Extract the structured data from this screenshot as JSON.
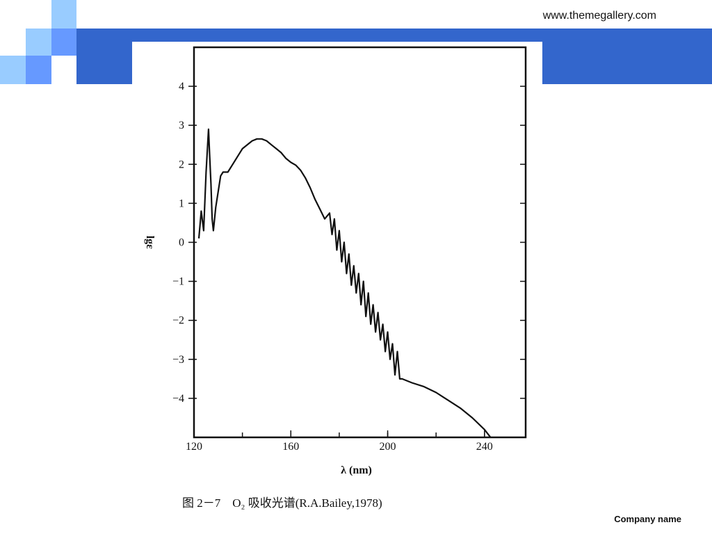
{
  "slide": {
    "website": "www.themegallery.com",
    "company": "Company name",
    "colors": {
      "band": "#3366cc",
      "light_square": "#99ccff",
      "mid_square": "#6699ff"
    }
  },
  "chart_data": {
    "type": "line",
    "xlabel": "λ (nm)",
    "ylabel": "lgε",
    "caption": "图 2－7　O₂ 吸收光谱(R.A.Bailey,1978)",
    "xlim": [
      120,
      257
    ],
    "ylim": [
      -5,
      5
    ],
    "x_ticks": [
      120,
      160,
      200,
      240
    ],
    "y_ticks": [
      4,
      3,
      2,
      1,
      0,
      -1,
      -2,
      -3,
      -4
    ],
    "y_tick_labels": [
      "4",
      "3",
      "2",
      "1",
      "0",
      "−1",
      "−2",
      "−3",
      "−4"
    ],
    "grid": false,
    "series": [
      {
        "color": "#111111",
        "x": [
          122,
          123,
          124,
          125,
          126,
          126.5,
          127,
          127.5,
          128,
          129,
          130,
          131,
          132,
          134,
          136,
          140,
          144,
          146,
          148,
          150,
          152,
          154,
          156,
          158,
          160,
          162,
          164,
          166,
          168,
          170,
          172,
          174,
          176,
          177,
          178,
          179,
          180,
          181,
          182,
          183,
          184,
          185,
          186,
          187,
          188,
          189,
          190,
          191,
          192,
          193,
          194,
          195,
          196,
          197,
          198,
          199,
          200,
          201,
          202,
          203,
          204,
          205,
          206,
          210,
          215,
          220,
          225,
          230,
          235,
          240,
          245,
          248
        ],
        "y": [
          0.1,
          0.8,
          0.3,
          1.8,
          2.9,
          2.2,
          1.5,
          0.6,
          0.3,
          0.9,
          1.3,
          1.7,
          1.8,
          1.8,
          2.0,
          2.4,
          2.6,
          2.65,
          2.65,
          2.6,
          2.5,
          2.4,
          2.3,
          2.15,
          2.05,
          1.98,
          1.85,
          1.65,
          1.4,
          1.1,
          0.85,
          0.6,
          0.75,
          0.2,
          0.6,
          -0.2,
          0.3,
          -0.5,
          0.0,
          -0.8,
          -0.3,
          -1.1,
          -0.6,
          -1.3,
          -0.8,
          -1.6,
          -1.0,
          -1.9,
          -1.3,
          -2.1,
          -1.6,
          -2.3,
          -1.8,
          -2.5,
          -2.1,
          -2.8,
          -2.3,
          -3.0,
          -2.6,
          -3.4,
          -2.8,
          -3.5,
          -3.5,
          -3.6,
          -3.7,
          -3.85,
          -4.05,
          -4.25,
          -4.5,
          -4.8,
          -5.2,
          -5.5
        ]
      }
    ]
  }
}
